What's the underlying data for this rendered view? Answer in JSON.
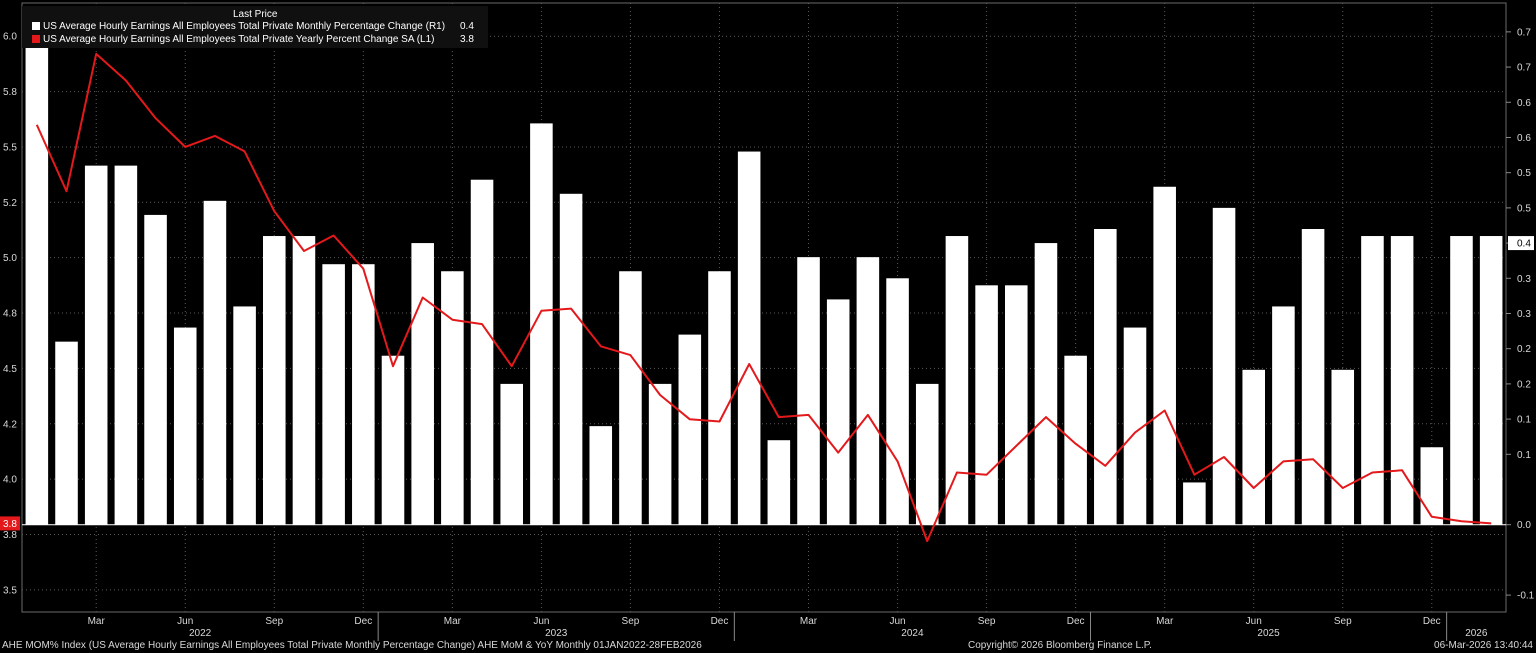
{
  "chart_data": {
    "type": "bar",
    "legend_header": "Last Price",
    "series": [
      {
        "name": "US Average Hourly Earnings All Employees Total Private Monthly Percentage Change  (R1)",
        "last_value": "0.4",
        "type": "bar",
        "axis": "right",
        "color": "#ffffff",
        "values": [
          0.68,
          0.26,
          0.51,
          0.51,
          0.44,
          0.28,
          0.46,
          0.31,
          0.41,
          0.41,
          0.37,
          0.37,
          0.24,
          0.4,
          0.36,
          0.49,
          0.2,
          0.57,
          0.47,
          0.14,
          0.36,
          0.2,
          0.27,
          0.36,
          0.53,
          0.12,
          0.38,
          0.32,
          0.38,
          0.35,
          0.2,
          0.41,
          0.34,
          0.34,
          0.4,
          0.24,
          0.42,
          0.28,
          0.48,
          0.06,
          0.45,
          0.22,
          0.31,
          0.42,
          0.22,
          0.41,
          0.41,
          0.11,
          0.41,
          0.41
        ]
      },
      {
        "name": "US Average Hourly Earnings All Employees Total Private Yearly Percent Change SA  (L1)",
        "last_value": "3.8",
        "type": "line",
        "axis": "left",
        "color": "#e3191b",
        "values": [
          5.6,
          5.3,
          5.92,
          5.8,
          5.63,
          5.5,
          5.55,
          5.48,
          5.21,
          5.03,
          5.1,
          4.95,
          4.51,
          4.82,
          4.72,
          4.7,
          4.51,
          4.76,
          4.77,
          4.6,
          4.56,
          4.38,
          4.27,
          4.26,
          4.52,
          4.28,
          4.29,
          4.12,
          4.29,
          4.08,
          3.72,
          4.03,
          4.02,
          4.15,
          4.28,
          4.16,
          4.06,
          4.21,
          4.31,
          4.02,
          4.1,
          3.96,
          4.08,
          4.09,
          3.96,
          4.03,
          4.04,
          3.83,
          3.81,
          3.8
        ]
      }
    ],
    "y_left": {
      "ticks": [
        "3.5",
        "3.8",
        "4.0",
        "4.2",
        "4.5",
        "4.8",
        "5.0",
        "5.2",
        "5.5",
        "5.8",
        "6.0"
      ],
      "tick_values": [
        3.5,
        3.75,
        4.0,
        4.25,
        4.5,
        4.75,
        5.0,
        5.25,
        5.5,
        5.75,
        6.0
      ],
      "range": [
        3.4,
        6.15
      ],
      "last_label": "3.8",
      "last_value": 3.8
    },
    "y_right": {
      "ticks": [
        "-0.1",
        "0.0",
        "0.1",
        "0.1",
        "0.2",
        "0.2",
        "0.3",
        "0.3",
        "0.4",
        "0.5",
        "0.5",
        "0.6",
        "0.6",
        "0.7",
        "0.7"
      ],
      "tick_values": [
        -0.1,
        0.0,
        0.1,
        0.15,
        0.2,
        0.25,
        0.3,
        0.35,
        0.4,
        0.45,
        0.5,
        0.55,
        0.6,
        0.65,
        0.7
      ],
      "range": [
        -0.124,
        0.741
      ],
      "last_label": "0.4",
      "last_value": 0.4
    },
    "x_ticks": [
      {
        "label": "Mar",
        "index": 2
      },
      {
        "label": "Jun",
        "index": 5
      },
      {
        "label": "Sep",
        "index": 8
      },
      {
        "label": "Dec",
        "index": 11
      },
      {
        "label": "Mar",
        "index": 14
      },
      {
        "label": "Jun",
        "index": 17
      },
      {
        "label": "Sep",
        "index": 20
      },
      {
        "label": "Dec",
        "index": 23
      },
      {
        "label": "Mar",
        "index": 26
      },
      {
        "label": "Jun",
        "index": 29
      },
      {
        "label": "Sep",
        "index": 32
      },
      {
        "label": "Dec",
        "index": 35
      },
      {
        "label": "Mar",
        "index": 38
      },
      {
        "label": "Jun",
        "index": 41
      },
      {
        "label": "Sep",
        "index": 44
      },
      {
        "label": "Dec",
        "index": 47
      }
    ],
    "years": [
      {
        "label": "2022",
        "index": 5.5
      },
      {
        "label": "2023",
        "index": 17.5
      },
      {
        "label": "2024",
        "index": 29.5
      },
      {
        "label": "2025",
        "index": 41.5
      },
      {
        "label": "2026",
        "index": 48.5
      }
    ],
    "year_dividers": [
      11.5,
      23.5,
      35.5,
      47.5
    ],
    "grid": true
  },
  "footer": {
    "left": "AHE MOM% Index (US Average Hourly Earnings All Employees Total Private Monthly Percentage Change) AHE MoM & YoY Monthly 01JAN2022-28FEB2026",
    "center": "Copyright© 2026 Bloomberg Finance L.P.",
    "right": "06-Mar-2026 13:40:44"
  }
}
